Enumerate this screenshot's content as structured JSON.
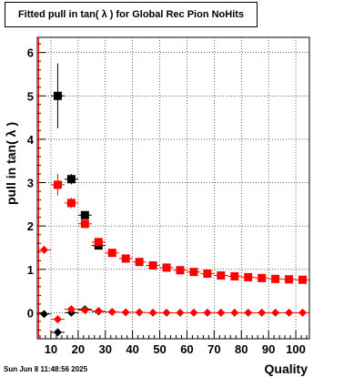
{
  "title": "Fitted pull in tan( λ ) for Global Rec Pion NoHits",
  "datestamp": "Sun Jun  8 11:48:56 2025",
  "chart_data": {
    "type": "scatter",
    "title": "Fitted pull in tan( λ ) for Global Rec Pion NoHits",
    "xlabel": "Quality",
    "ylabel": "pull in tan( λ )",
    "xlim": [
      5,
      105
    ],
    "ylim": [
      -0.6,
      6.35
    ],
    "x_ticks": [
      10,
      20,
      30,
      40,
      50,
      60,
      70,
      80,
      90,
      100
    ],
    "y_ticks": [
      0,
      1,
      2,
      3,
      4,
      5,
      6
    ],
    "grid": true,
    "red_vertical_line_x": 5.5,
    "series": [
      {
        "marker": "square",
        "color": "#000000",
        "x": [
          12.5,
          17.5,
          22.5,
          27.5
        ],
        "y": [
          5.0,
          3.08,
          2.25,
          1.55
        ],
        "yerr": [
          0.75,
          0.12,
          0.08,
          0.06
        ]
      },
      {
        "marker": "diamond",
        "color": "#000000",
        "x": [
          7.5,
          12.5,
          17.5,
          22.5,
          27.5
        ],
        "y": [
          -0.03,
          -0.45,
          0.0,
          0.08,
          0.03
        ],
        "yerr": [
          0.02,
          0.05,
          0.03,
          0.02,
          0.02
        ]
      },
      {
        "marker": "square",
        "color": "#ff0000",
        "x": [
          12.5,
          17.5,
          22.5,
          27.5,
          32.5,
          37.5,
          42.5,
          47.5,
          52.5,
          57.5,
          62.5,
          67.5,
          72.5,
          77.5,
          82.5,
          87.5,
          92.5,
          97.5,
          102.5
        ],
        "y": [
          2.95,
          2.53,
          2.05,
          1.63,
          1.38,
          1.25,
          1.17,
          1.09,
          1.04,
          0.98,
          0.94,
          0.9,
          0.86,
          0.84,
          0.82,
          0.8,
          0.78,
          0.77,
          0.76
        ],
        "yerr": [
          0.25,
          0.12,
          0.07,
          0.05,
          0.04,
          0.04,
          0.03,
          0.03,
          0.03,
          0.02,
          0.02,
          0.02,
          0.02,
          0.02,
          0.02,
          0.02,
          0.02,
          0.02,
          0.02
        ]
      },
      {
        "marker": "diamond",
        "color": "#ff0000",
        "x": [
          7.5,
          12.5,
          17.5,
          22.5,
          27.5,
          32.5,
          37.5,
          42.5,
          47.5,
          52.5,
          57.5,
          62.5,
          67.5,
          72.5,
          77.5,
          82.5,
          87.5,
          92.5,
          97.5,
          102.5
        ],
        "y": [
          1.45,
          -0.15,
          0.08,
          0.06,
          0.04,
          0.02,
          0.01,
          0.01,
          0.0,
          0.0,
          0.0,
          0.0,
          0.0,
          0.0,
          0.0,
          0.0,
          0.0,
          0.0,
          0.0,
          0.0
        ],
        "yerr": [
          0.05,
          0.06,
          0.03,
          0.02,
          0.02,
          0.01,
          0.01,
          0.01,
          0.01,
          0.01,
          0.01,
          0.01,
          0.01,
          0.01,
          0.01,
          0.01,
          0.01,
          0.01,
          0.01,
          0.01
        ]
      }
    ]
  }
}
